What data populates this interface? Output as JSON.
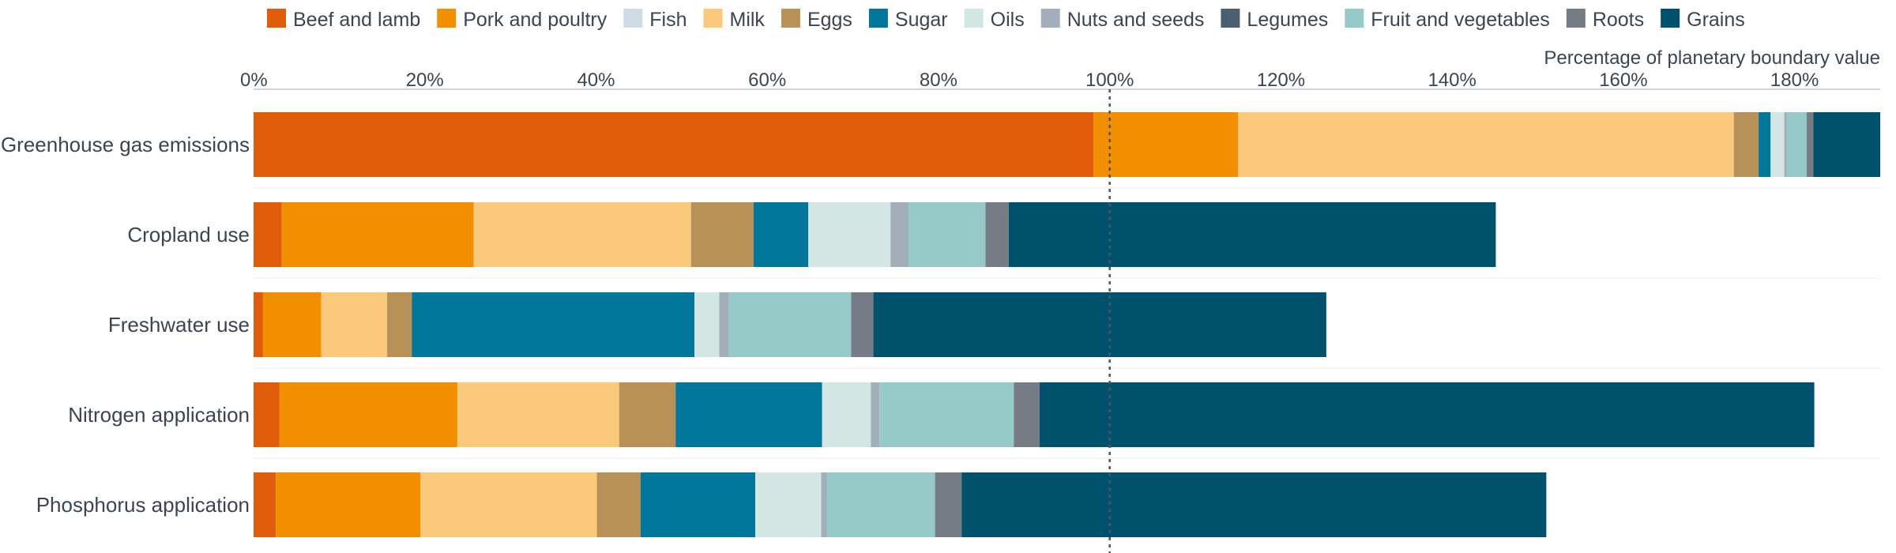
{
  "chart_data": {
    "type": "bar",
    "orientation": "horizontal",
    "stacked": true,
    "axis_title": "Percentage of planetary boundary value",
    "xlim": [
      0,
      190
    ],
    "x_ticks": [
      0,
      20,
      40,
      60,
      80,
      100,
      120,
      140,
      160,
      180
    ],
    "x_tick_labels": [
      "0%",
      "20%",
      "40%",
      "60%",
      "80%",
      "100%",
      "120%",
      "140%",
      "160%",
      "180%"
    ],
    "reference_line": 100,
    "legend_position": "top",
    "categories": [
      "Greenhouse gas emissions",
      "Cropland use",
      "Freshwater use",
      "Nitrogen application",
      "Phosphorus application"
    ],
    "series": [
      {
        "name": "Beef and lamb",
        "color": "#e05c0a",
        "values": [
          98.1,
          3.3,
          1.1,
          3.0,
          2.6
        ]
      },
      {
        "name": "Pork and poultry",
        "color": "#f28f00",
        "values": [
          16.9,
          22.4,
          6.8,
          20.8,
          16.9
        ]
      },
      {
        "name": "Fish",
        "color": "#cfdce6",
        "values": [
          0.0,
          0.0,
          0.0,
          0.0,
          0.0
        ]
      },
      {
        "name": "Milk",
        "color": "#fbc97c",
        "values": [
          57.9,
          25.4,
          7.7,
          18.9,
          20.6
        ]
      },
      {
        "name": "Eggs",
        "color": "#b89158",
        "values": [
          2.9,
          7.3,
          2.9,
          6.6,
          5.1
        ]
      },
      {
        "name": "Sugar",
        "color": "#00769b",
        "values": [
          1.4,
          6.4,
          33.0,
          17.1,
          13.4
        ]
      },
      {
        "name": "Oils",
        "color": "#d2e6e4",
        "values": [
          1.6,
          9.6,
          2.9,
          5.7,
          7.7
        ]
      },
      {
        "name": "Nuts and seeds",
        "color": "#a2aeb9",
        "values": [
          0.3,
          2.1,
          1.1,
          1.0,
          0.7
        ]
      },
      {
        "name": "Legumes",
        "color": "#4b5f72",
        "values": [
          0.0,
          0.0,
          0.0,
          0.0,
          0.0
        ]
      },
      {
        "name": "Fruit and vegetables",
        "color": "#96cac8",
        "values": [
          2.3,
          9.0,
          14.3,
          15.7,
          12.6
        ]
      },
      {
        "name": "Roots",
        "color": "#767c86",
        "values": [
          0.8,
          2.7,
          2.6,
          3.0,
          3.1
        ]
      },
      {
        "name": "Grains",
        "color": "#00526c",
        "values": [
          7.8,
          56.9,
          52.9,
          90.5,
          68.3
        ]
      }
    ]
  }
}
